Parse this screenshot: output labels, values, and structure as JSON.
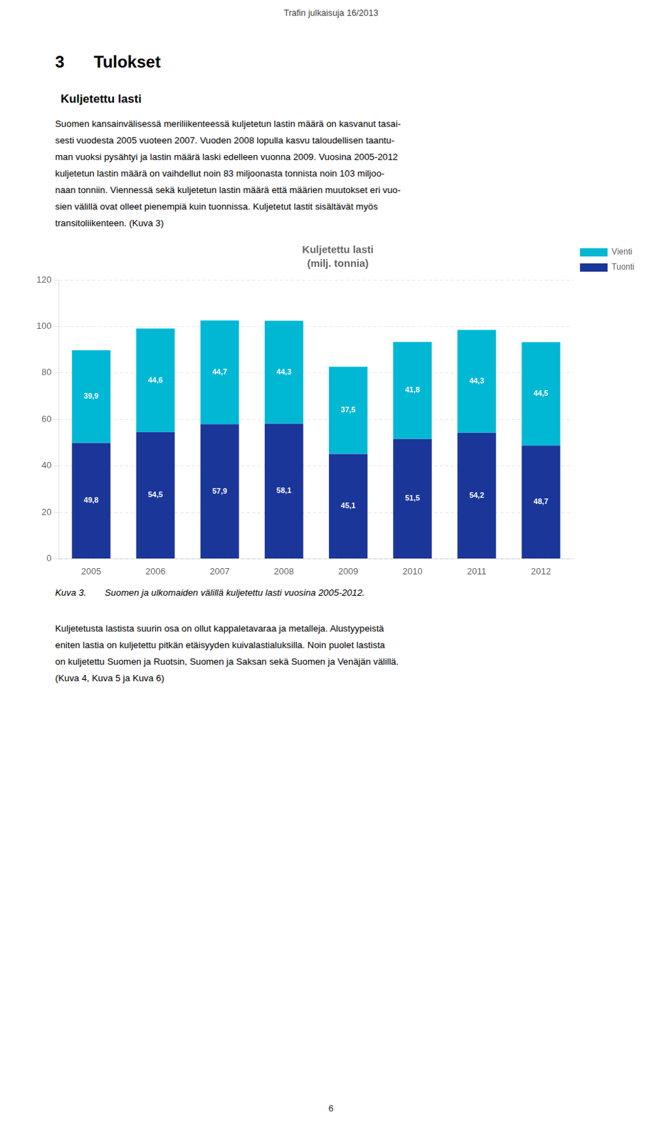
{
  "header": "Trafin julkaisuja 16/2013",
  "section_number": "3",
  "section_title": "Tulokset",
  "subsection_title": "Kuljetettu lasti",
  "para1_lines": [
    "Suomen kansainvälisessä meriliikenteessä kuljetetun lastin määrä on kasvanut tasai-",
    "sesti vuodesta 2005 vuoteen 2007. Vuoden 2008 lopulla kasvu taloudellisen taantu-",
    "man vuoksi pysähtyi ja lastin määrä laski edelleen vuonna 2009. Vuosina 2005-2012",
    "kuljetetun lastin määrä on vaihdellut noin 83 miljoonasta tonnista noin 103 miljoo-",
    "naan tonniin. Viennessä sekä kuljetetun lastin määrä että määrien muutokset eri vuo-",
    "sien välillä ovat olleet pienempiä kuin tuonnissa. Kuljetetut lastit sisältävät myös",
    "transitoliikenteen. (Kuva 3)"
  ],
  "caption_label": "Kuva 3.",
  "caption_text": "Suomen ja ulkomaiden välillä kuljetettu lasti vuosina 2005-2012.",
  "para2_lines": [
    "Kuljetetusta lastista suurin osa on ollut kappaletavaraa ja metalleja. Alustyypeistä",
    "eniten lastia on kuljetettu pitkän etäisyyden kuivalastialuksilla. Noin puolet lastista",
    "on kuljetettu Suomen ja Ruotsin, Suomen ja Saksan sekä Suomen ja Venäjän välillä.",
    "(Kuva 4, Kuva 5 ja Kuva 6)"
  ],
  "page_number": "6",
  "chart_data": {
    "type": "bar",
    "title": "Kuljetettu lasti",
    "subtitle": "(milj. tonnia)",
    "categories": [
      "2005",
      "2006",
      "2007",
      "2008",
      "2009",
      "2010",
      "2011",
      "2012"
    ],
    "series": [
      {
        "name": "Tuonti",
        "color": "#1a3699",
        "values": [
          49.8,
          54.5,
          57.9,
          58.1,
          45.1,
          51.5,
          54.2,
          48.7
        ],
        "value_labels": [
          "49,8",
          "54,5",
          "57,9",
          "58,1",
          "45,1",
          "51,5",
          "54,2",
          "48,7"
        ]
      },
      {
        "name": "Vienti",
        "color": "#00b8d4",
        "values": [
          39.9,
          44.6,
          44.7,
          44.3,
          37.5,
          41.8,
          44.3,
          44.5
        ],
        "value_labels": [
          "39,9",
          "44,6",
          "44,7",
          "44,3",
          "37,5",
          "41,8",
          "44,3",
          "44,5"
        ]
      }
    ],
    "stacked": true,
    "data_labels": true,
    "ylim": [
      0,
      120
    ],
    "yticks": [
      0,
      20,
      40,
      60,
      80,
      100,
      120
    ],
    "grid": true,
    "legend": "right"
  }
}
